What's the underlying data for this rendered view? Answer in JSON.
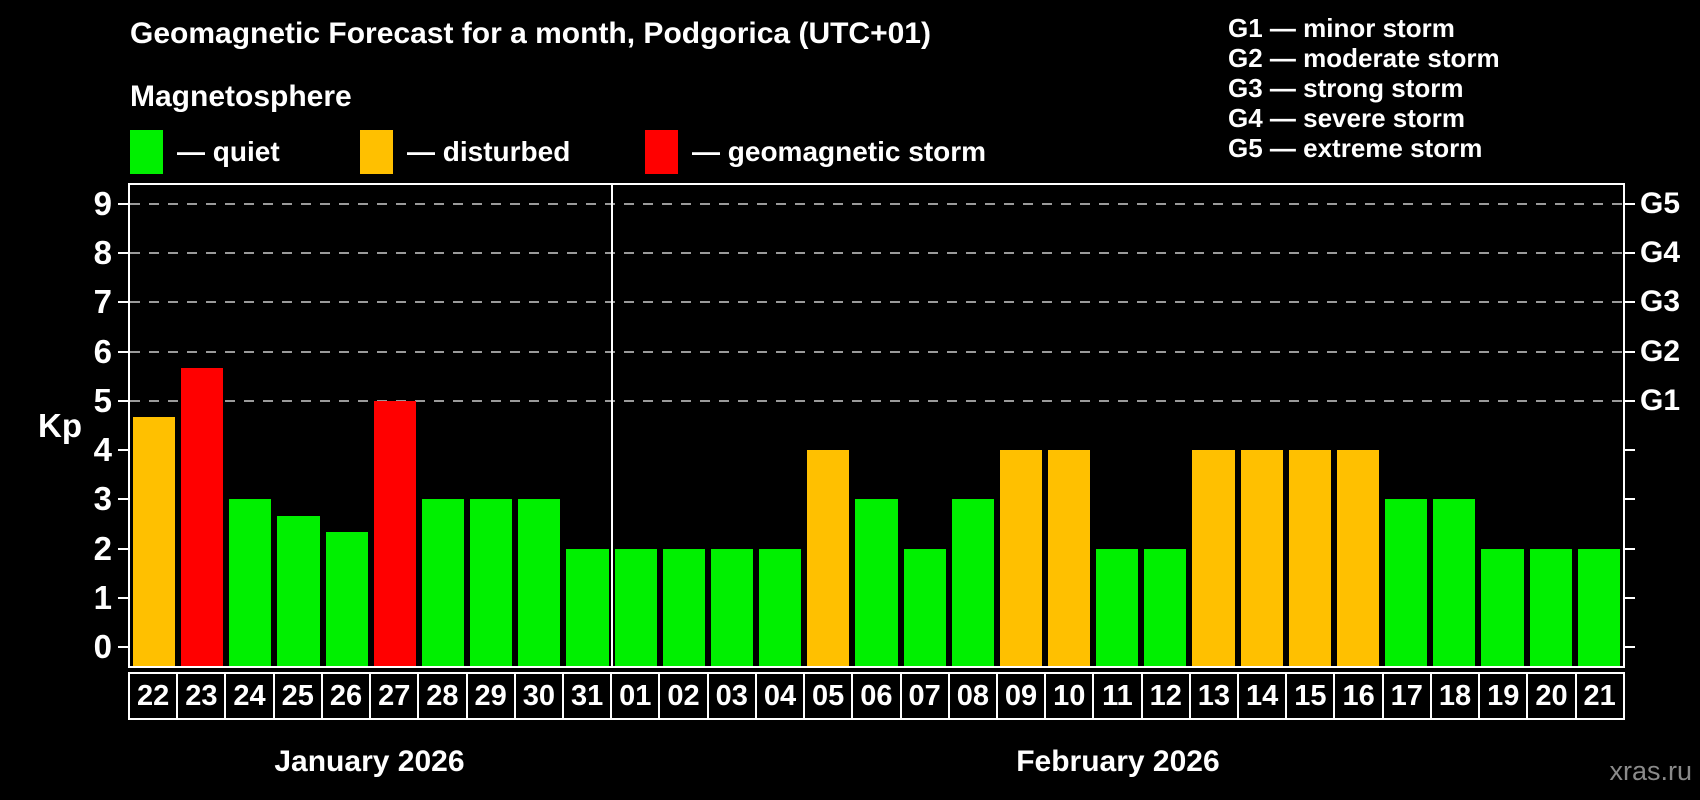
{
  "header": {
    "title": "Geomagnetic Forecast for a month, Podgorica (UTC+01)",
    "subtitle": "Magnetosphere"
  },
  "legend": {
    "items": [
      {
        "label": "— quiet",
        "status": "quiet"
      },
      {
        "label": "— disturbed",
        "status": "disturbed"
      },
      {
        "label": "— geomagnetic storm",
        "status": "storm"
      }
    ]
  },
  "g_legend": {
    "lines": [
      "G1 — minor storm",
      "G2 — moderate storm",
      "G3 — strong storm",
      "G4 — severe storm",
      "G5 — extreme storm"
    ]
  },
  "chart_data": {
    "type": "bar",
    "title": "Geomagnetic Forecast for a month, Podgorica (UTC+01)",
    "ylabel": "Kp",
    "ylim": [
      0,
      9
    ],
    "yticks": [
      0,
      1,
      2,
      3,
      4,
      5,
      6,
      7,
      8,
      9
    ],
    "gridlines_at": [
      5,
      6,
      7,
      8,
      9
    ],
    "grid_on": true,
    "right_axis": {
      "labels": [
        "G1",
        "G2",
        "G3",
        "G4",
        "G5"
      ],
      "levels": [
        5,
        6,
        7,
        8,
        9
      ]
    },
    "month_groups": [
      {
        "label": "January 2026",
        "count": 10
      },
      {
        "label": "February 2026",
        "count": 21
      }
    ],
    "categories": [
      "22",
      "23",
      "24",
      "25",
      "26",
      "27",
      "28",
      "29",
      "30",
      "31",
      "01",
      "02",
      "03",
      "04",
      "05",
      "06",
      "07",
      "08",
      "09",
      "10",
      "11",
      "12",
      "13",
      "14",
      "15",
      "16",
      "17",
      "18",
      "19",
      "20",
      "21"
    ],
    "values": [
      4.67,
      5.67,
      3,
      2.67,
      2.33,
      5,
      3,
      3,
      3,
      2,
      2,
      2,
      2,
      2,
      4,
      3,
      2,
      3,
      4,
      4,
      2,
      2,
      4,
      4,
      4,
      4,
      3,
      3,
      2,
      2,
      2
    ],
    "statuses": [
      "disturbed",
      "storm",
      "quiet",
      "quiet",
      "quiet",
      "storm",
      "quiet",
      "quiet",
      "quiet",
      "quiet",
      "quiet",
      "quiet",
      "quiet",
      "quiet",
      "disturbed",
      "quiet",
      "quiet",
      "quiet",
      "disturbed",
      "disturbed",
      "quiet",
      "quiet",
      "disturbed",
      "disturbed",
      "disturbed",
      "disturbed",
      "quiet",
      "quiet",
      "quiet",
      "quiet",
      "quiet"
    ],
    "status_colors": {
      "quiet": "#00f000",
      "disturbed": "#ffc000",
      "storm": "#ff0000"
    },
    "colors": {
      "background": "#000000",
      "frame": "#ffffff",
      "grid": "#9a9a9a",
      "text": "#ffffff",
      "watermark": "#8a8a8a"
    }
  },
  "footer": {
    "watermark": "xras.ru"
  }
}
